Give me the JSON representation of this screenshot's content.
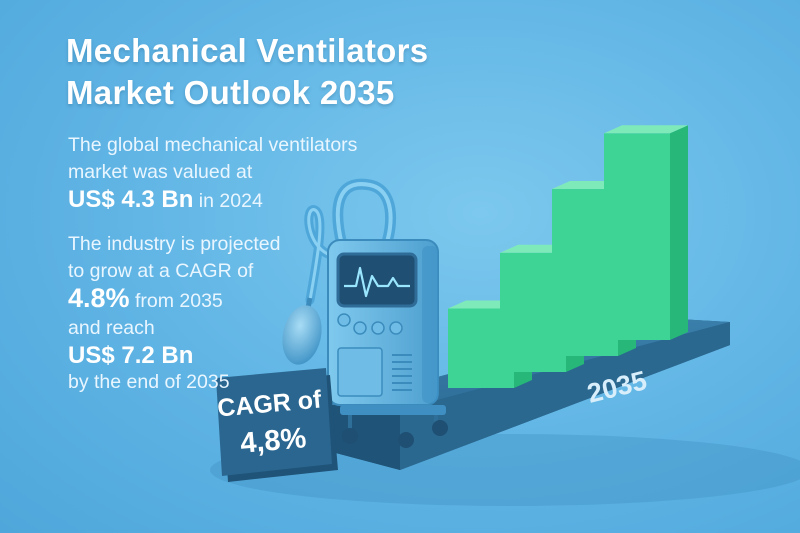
{
  "title": {
    "line1": "Mechanical Ventilators",
    "line2": "Market Outlook 2035"
  },
  "intro": {
    "line1": "The global mechanical ventilators",
    "line2": "market was valued at",
    "value": "US$ 4.3 Bn",
    "suffix": " in 2024"
  },
  "projection": {
    "line1": "The industry is projected",
    "line2": "to grow at a CAGR of",
    "cagr_value": "4.8%",
    "cagr_suffix": " from 2035",
    "line3": "and reach",
    "target_value": "US$ 7.2 Bn",
    "line4": "by the end of 2035"
  },
  "badge": {
    "line1": "CAGR of",
    "line2": "4,8%"
  },
  "colors": {
    "background": "#5fb4e4",
    "bar_front": "#3dd495",
    "bar_side": "#27b879",
    "bar_top": "#7eeab9",
    "base": "#2d6f98",
    "badge": "#2a6690",
    "device": "#5ab0dc"
  },
  "chart_data": {
    "type": "bar",
    "categories": [
      "",
      "",
      "",
      ""
    ],
    "values": [
      3,
      4.5,
      6.3,
      7.8
    ],
    "title": "",
    "xlabel": "2035",
    "ylabel": "",
    "grid": false,
    "legend": "none",
    "icons": [
      "ventilator-device-icon",
      "air-bulb-icon"
    ]
  }
}
